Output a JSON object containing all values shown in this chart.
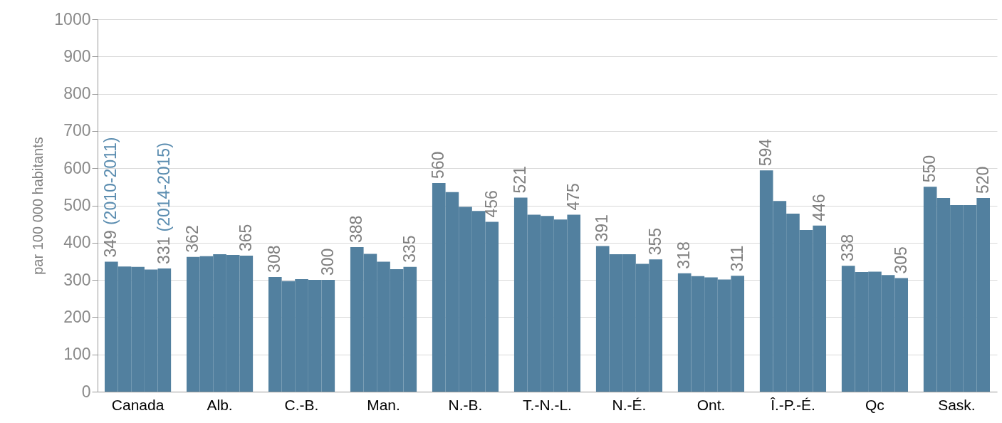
{
  "chart_data": {
    "type": "bar",
    "ylabel": "par 100 000 habitants",
    "categories": [
      "Canada",
      "Alb.",
      "C.-B.",
      "Man.",
      "N.-B.",
      "T.-N.-L.",
      "N.-É.",
      "Ont.",
      "Î.-P.-É.",
      "Qc",
      "Sask."
    ],
    "series": [
      {
        "color": "#52809f",
        "values": [
          349,
          362,
          308,
          388,
          560,
          521,
          391,
          318,
          594,
          338,
          550
        ],
        "value_labels": [
          "349",
          "362",
          "308",
          "388",
          "560",
          "521",
          "391",
          "318",
          "594",
          "338",
          "550"
        ]
      },
      {
        "color": "#52809f",
        "values": [
          336,
          364,
          297,
          370,
          536,
          475,
          369,
          310,
          512,
          321,
          520
        ]
      },
      {
        "color": "#52809f",
        "values": [
          335,
          369,
          302,
          349,
          496,
          472,
          369,
          307,
          478,
          322,
          501
        ]
      },
      {
        "color": "#52809f",
        "values": [
          328,
          367,
          300,
          329,
          485,
          462,
          343,
          301,
          434,
          313,
          501
        ]
      },
      {
        "color": "#52809f",
        "values": [
          331,
          365,
          300,
          335,
          456,
          475,
          355,
          311,
          446,
          305,
          520
        ],
        "value_labels": [
          "331",
          "365",
          "300",
          "335",
          "456",
          "475",
          "355",
          "311",
          "446",
          "305",
          "520"
        ]
      }
    ],
    "annotations": [
      "(2010-2011)",
      "(2014-2015)"
    ],
    "ylim": [
      0,
      1000
    ],
    "yticks": [
      0,
      100,
      200,
      300,
      400,
      500,
      600,
      700,
      800,
      900,
      1000
    ],
    "grid": "y"
  }
}
